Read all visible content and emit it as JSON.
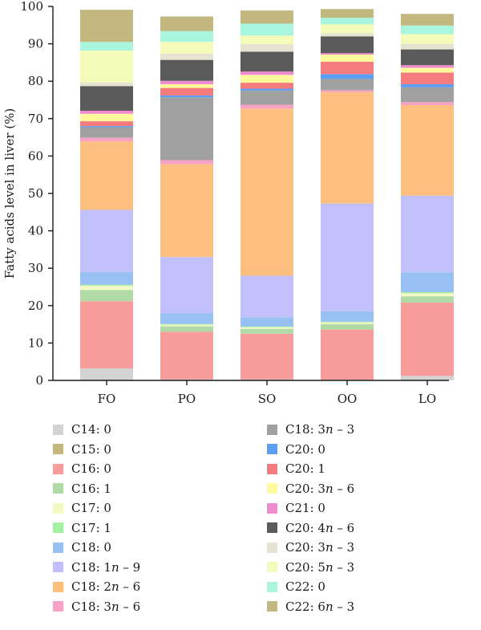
{
  "chart_data": {
    "type": "bar",
    "stacked": true,
    "title": "",
    "xlabel": "",
    "ylabel": "Fatty acids level in liver (%)",
    "ylim": [
      0,
      100
    ],
    "yticks": [
      "0",
      "10",
      "20",
      "30",
      "40",
      "50",
      "60",
      "70",
      "80",
      "90",
      "100"
    ],
    "categories": [
      "FO",
      "PO",
      "SO",
      "OO",
      "LO"
    ],
    "series": [
      {
        "name": "C14: 0",
        "color": "#d3d3d3",
        "values": [
          3.2,
          0.3,
          0.3,
          0.2,
          1.2
        ]
      },
      {
        "name": "C16: 0",
        "color": "#f89c9c",
        "values": [
          18.0,
          12.7,
          12.2,
          13.4,
          19.6
        ]
      },
      {
        "name": "C16: 1",
        "color": "#b0dba6",
        "values": [
          3.0,
          1.5,
          1.3,
          1.5,
          1.7
        ]
      },
      {
        "name": "C17: 0",
        "color": "#f2f9c4",
        "values": [
          1.1,
          0.4,
          0.4,
          0.4,
          0.8
        ]
      },
      {
        "name": "C17: 1",
        "color": "#a4f0a4",
        "values": [
          0.3,
          0.2,
          0.2,
          0.2,
          0.3
        ]
      },
      {
        "name": "C18: 0",
        "color": "#99c0f3",
        "values": [
          3.4,
          2.9,
          2.5,
          2.8,
          5.3
        ]
      },
      {
        "name": "C18: 1n – 9",
        "color": "#c1c0fa",
        "values": [
          16.6,
          15.0,
          11.1,
          28.8,
          20.5
        ]
      },
      {
        "name": "C18: 2n – 6",
        "color": "#fdbf80",
        "values": [
          18.3,
          24.8,
          44.7,
          29.8,
          24.2
        ]
      },
      {
        "name": "C18: 3n – 6",
        "color": "#f6a2c4",
        "values": [
          1.0,
          1.1,
          1.0,
          0.5,
          0.8
        ]
      },
      {
        "name": "C18: 3n – 3",
        "color": "#a0a0a0",
        "values": [
          2.8,
          16.8,
          3.8,
          3.0,
          4.0
        ]
      },
      {
        "name": "C20: 0",
        "color": "#5b9ff5",
        "values": [
          0.3,
          0.5,
          0.5,
          1.3,
          0.8
        ]
      },
      {
        "name": "C20: 1",
        "color": "#f47c7c",
        "values": [
          1.3,
          2.0,
          1.6,
          3.3,
          3.1
        ]
      },
      {
        "name": "C20: 3n – 6",
        "color": "#fffa9c",
        "values": [
          2.0,
          1.0,
          2.1,
          1.9,
          1.3
        ]
      },
      {
        "name": "C21: 0",
        "color": "#f08ad0",
        "values": [
          0.8,
          0.9,
          0.9,
          0.4,
          0.7
        ]
      },
      {
        "name": "C20: 4n – 6",
        "color": "#5a5a5a",
        "values": [
          6.6,
          5.6,
          5.3,
          4.5,
          4.2
        ]
      },
      {
        "name": "C20: 3n – 3",
        "color": "#e6e3d2",
        "values": [
          1.0,
          1.7,
          2.0,
          0.8,
          1.5
        ]
      },
      {
        "name": "C20: 5n – 3",
        "color": "#f4fbb8",
        "values": [
          8.5,
          3.1,
          2.3,
          2.4,
          2.6
        ]
      },
      {
        "name": "C22: 0",
        "color": "#aaf5dd",
        "values": [
          2.3,
          2.9,
          3.2,
          1.8,
          2.3
        ]
      },
      {
        "name": "C22: 6n – 3",
        "color": "#c2b77e",
        "values": [
          8.6,
          3.9,
          3.5,
          2.3,
          3.1
        ]
      }
    ]
  },
  "legend": {
    "columns": [
      [
        {
          "prefix": "C14: 0",
          "italic": "",
          "suffix": "",
          "color": "#d3d3d3"
        },
        {
          "prefix": "C15: 0",
          "italic": "",
          "suffix": "",
          "color": "#c2b77e"
        },
        {
          "prefix": "C16: 0",
          "italic": "",
          "suffix": "",
          "color": "#f89c9c"
        },
        {
          "prefix": "C16: 1",
          "italic": "",
          "suffix": "",
          "color": "#b0dba6"
        },
        {
          "prefix": "C17: 0",
          "italic": "",
          "suffix": "",
          "color": "#f2f9c4"
        },
        {
          "prefix": "C17: 1",
          "italic": "",
          "suffix": "",
          "color": "#a4f0a4"
        },
        {
          "prefix": "C18: 0",
          "italic": "",
          "suffix": "",
          "color": "#99c0f3"
        },
        {
          "prefix": "C18: 1",
          "italic": "n",
          "suffix": " – 9",
          "color": "#c1c0fa"
        },
        {
          "prefix": "C18: 2",
          "italic": "n",
          "suffix": " – 6",
          "color": "#fdbf80"
        },
        {
          "prefix": "C18: 3",
          "italic": "n",
          "suffix": " – 6",
          "color": "#f6a2c4"
        }
      ],
      [
        {
          "prefix": "C18: 3",
          "italic": "n",
          "suffix": " – 3",
          "color": "#a0a0a0"
        },
        {
          "prefix": "C20: 0",
          "italic": "",
          "suffix": "",
          "color": "#5b9ff5"
        },
        {
          "prefix": "C20: 1",
          "italic": "",
          "suffix": "",
          "color": "#f47c7c"
        },
        {
          "prefix": "C20: 3",
          "italic": "n",
          "suffix": " – 6",
          "color": "#fffa9c"
        },
        {
          "prefix": "C21: 0",
          "italic": "",
          "suffix": "",
          "color": "#f08ad0"
        },
        {
          "prefix": "C20: 4",
          "italic": "n",
          "suffix": " – 6",
          "color": "#5a5a5a"
        },
        {
          "prefix": "C20: 3",
          "italic": "n",
          "suffix": " – 3",
          "color": "#e6e3d2"
        },
        {
          "prefix": "C20: 5",
          "italic": "n",
          "suffix": " – 3",
          "color": "#f4fbb8"
        },
        {
          "prefix": "C22: 0",
          "italic": "",
          "suffix": "",
          "color": "#aaf5dd"
        },
        {
          "prefix": "C22: 6",
          "italic": "n",
          "suffix": " – 3",
          "color": "#c2b77e"
        }
      ]
    ]
  }
}
